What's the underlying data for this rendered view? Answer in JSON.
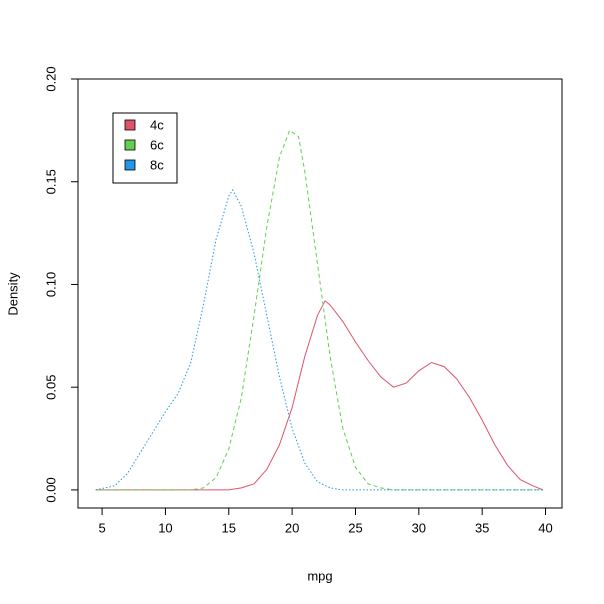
{
  "chart_data": {
    "type": "line",
    "xlabel": "mpg",
    "ylabel": "Density",
    "xlim": [
      3.1,
      41.3
    ],
    "ylim": [
      -0.0088,
      0.2
    ],
    "xticks": [
      5,
      10,
      15,
      20,
      25,
      30,
      35,
      40
    ],
    "yticks": [
      {
        "value": 0,
        "label": "0.00"
      },
      {
        "value": 0.05,
        "label": "0.05"
      },
      {
        "value": 0.1,
        "label": "0.10"
      },
      {
        "value": 0.15,
        "label": "0.15"
      },
      {
        "value": 0.2,
        "label": "0.20"
      }
    ],
    "legend": "top-left",
    "series": [
      {
        "name": "4c",
        "color": "#DF536B",
        "linestyle": "solid",
        "x": [
          4.5,
          15,
          16,
          17,
          18,
          19,
          20,
          21,
          22,
          22.6,
          23,
          24,
          25,
          26,
          27,
          28,
          29,
          30,
          31,
          32,
          33,
          34,
          35,
          36,
          37,
          38,
          39,
          39.8
        ],
        "values": [
          0,
          0,
          0.001,
          0.003,
          0.01,
          0.022,
          0.04,
          0.065,
          0.085,
          0.092,
          0.09,
          0.082,
          0.072,
          0.063,
          0.055,
          0.05,
          0.052,
          0.058,
          0.062,
          0.06,
          0.054,
          0.045,
          0.034,
          0.022,
          0.012,
          0.005,
          0.002,
          0
        ]
      },
      {
        "name": "6c",
        "color": "#61D04F",
        "linestyle": "dashed",
        "x": [
          4.5,
          12,
          13,
          14,
          15,
          16,
          17,
          18,
          19,
          19.8,
          20.5,
          21,
          22,
          23,
          24,
          25,
          26,
          27,
          28,
          39.8
        ],
        "values": [
          0,
          0,
          0.001,
          0.006,
          0.02,
          0.045,
          0.085,
          0.128,
          0.162,
          0.175,
          0.172,
          0.155,
          0.11,
          0.065,
          0.03,
          0.011,
          0.003,
          0.001,
          0,
          0
        ]
      },
      {
        "name": "8c",
        "color": "#2297E6",
        "linestyle": "dotted",
        "x": [
          4.5,
          6,
          7,
          8,
          9,
          10,
          11,
          12,
          13,
          14,
          15,
          15.3,
          16,
          17,
          18,
          19,
          20,
          21,
          22,
          23,
          24,
          39.8
        ],
        "values": [
          0,
          0.002,
          0.008,
          0.018,
          0.028,
          0.038,
          0.047,
          0.062,
          0.09,
          0.122,
          0.143,
          0.146,
          0.138,
          0.115,
          0.085,
          0.055,
          0.03,
          0.013,
          0.004,
          0.001,
          0,
          0
        ]
      }
    ]
  }
}
